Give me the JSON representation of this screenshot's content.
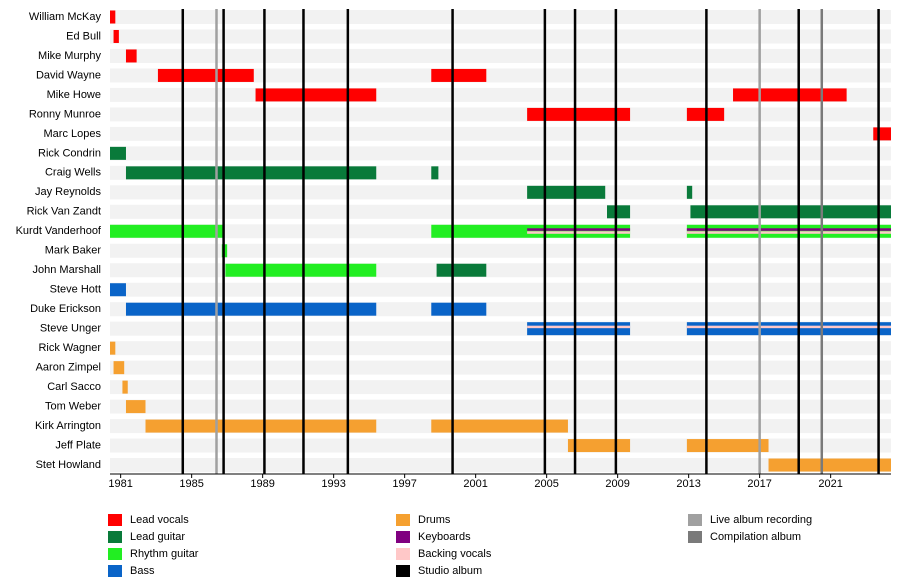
{
  "chart_data": {
    "type": "timeline",
    "members": [
      "William McKay",
      "Ed Bull",
      "Mike Murphy",
      "David Wayne",
      "Mike Howe",
      "Ronny Munroe",
      "Marc Lopes",
      "Rick Condrin",
      "Craig Wells",
      "Jay Reynolds",
      "Rick Van Zandt",
      "Kurdt Vanderhoof",
      "Mark Baker",
      "John Marshall",
      "Steve Hott",
      "Duke Erickson",
      "Steve Unger",
      "Rick Wagner",
      "Aaron Zimpel",
      "Carl Sacco",
      "Tom Weber",
      "Kirk Arrington",
      "Jeff Plate",
      "Stet Howland"
    ],
    "xlim": [
      1980.4,
      2024.4
    ],
    "xticks": [
      1981,
      1985,
      1989,
      1993,
      1997,
      2001,
      2005,
      2009,
      2013,
      2017,
      2021
    ],
    "series": [
      {
        "name": "Lead vocals",
        "color": "#ff0000",
        "bars": [
          {
            "member": "William McKay",
            "start": 1980.4,
            "end": 1980.7
          },
          {
            "member": "Ed Bull",
            "start": 1980.6,
            "end": 1980.9
          },
          {
            "member": "Mike Murphy",
            "start": 1981.3,
            "end": 1981.9
          },
          {
            "member": "David Wayne",
            "start": 1983.1,
            "end": 1988.5
          },
          {
            "member": "David Wayne",
            "start": 1998.5,
            "end": 2001.6
          },
          {
            "member": "Mike Howe",
            "start": 1988.6,
            "end": 1995.4
          },
          {
            "member": "Mike Howe",
            "start": 2015.5,
            "end": 2021.9
          },
          {
            "member": "Ronny Munroe",
            "start": 2003.9,
            "end": 2009.7
          },
          {
            "member": "Ronny Munroe",
            "start": 2012.9,
            "end": 2015.0
          },
          {
            "member": "Marc Lopes",
            "start": 2023.4,
            "end": 2024.4
          }
        ]
      },
      {
        "name": "Lead guitar",
        "color": "#097a3a",
        "bars": [
          {
            "member": "Rick Condrin",
            "start": 1980.4,
            "end": 1981.3
          },
          {
            "member": "Craig Wells",
            "start": 1981.3,
            "end": 1995.4
          },
          {
            "member": "Craig Wells",
            "start": 1998.5,
            "end": 1998.9
          },
          {
            "member": "Jay Reynolds",
            "start": 2003.9,
            "end": 2008.3
          },
          {
            "member": "Jay Reynolds",
            "start": 2012.9,
            "end": 2013.2
          },
          {
            "member": "Rick Van Zandt",
            "start": 2008.4,
            "end": 2009.7
          },
          {
            "member": "Rick Van Zandt",
            "start": 2013.1,
            "end": 2024.4
          },
          {
            "member": "John Marshall",
            "start": 1998.8,
            "end": 2001.6
          }
        ]
      },
      {
        "name": "Rhythm guitar",
        "color": "#22ee22",
        "bars": [
          {
            "member": "Kurdt Vanderhoof",
            "start": 1980.4,
            "end": 1986.8
          },
          {
            "member": "Kurdt Vanderhoof",
            "start": 1998.5,
            "end": 2009.7
          },
          {
            "member": "Kurdt Vanderhoof",
            "start": 2012.9,
            "end": 2024.4
          },
          {
            "member": "Mark Baker",
            "start": 1986.7,
            "end": 1987.0
          },
          {
            "member": "John Marshall",
            "start": 1986.9,
            "end": 1995.4
          }
        ]
      },
      {
        "name": "Bass",
        "color": "#0a64c8",
        "bars": [
          {
            "member": "Steve Hott",
            "start": 1980.4,
            "end": 1981.3
          },
          {
            "member": "Duke Erickson",
            "start": 1981.3,
            "end": 1995.4
          },
          {
            "member": "Duke Erickson",
            "start": 1998.5,
            "end": 2001.6
          },
          {
            "member": "Steve Unger",
            "start": 2003.9,
            "end": 2009.7
          },
          {
            "member": "Steve Unger",
            "start": 2012.9,
            "end": 2024.4
          }
        ]
      },
      {
        "name": "Drums",
        "color": "#f5a030",
        "bars": [
          {
            "member": "Rick Wagner",
            "start": 1980.4,
            "end": 1980.7
          },
          {
            "member": "Aaron Zimpel",
            "start": 1980.6,
            "end": 1981.2
          },
          {
            "member": "Carl Sacco",
            "start": 1981.1,
            "end": 1981.4
          },
          {
            "member": "Tom Weber",
            "start": 1981.3,
            "end": 1982.4
          },
          {
            "member": "Kirk Arrington",
            "start": 1982.4,
            "end": 1995.4
          },
          {
            "member": "Kirk Arrington",
            "start": 1998.5,
            "end": 2006.2
          },
          {
            "member": "Jeff Plate",
            "start": 2006.2,
            "end": 2009.7
          },
          {
            "member": "Jeff Plate",
            "start": 2012.9,
            "end": 2017.5
          },
          {
            "member": "Stet Howland",
            "start": 2017.5,
            "end": 2024.4
          }
        ]
      },
      {
        "name": "Keyboards",
        "color": "#800080",
        "bars": [
          {
            "member": "Kurdt Vanderhoof",
            "start": 2003.9,
            "end": 2009.7
          },
          {
            "member": "Kurdt Vanderhoof",
            "start": 2012.9,
            "end": 2024.4
          }
        ]
      },
      {
        "name": "Backing vocals",
        "color": "#ffc8c8",
        "bars": [
          {
            "member": "Kurdt Vanderhoof",
            "start": 2003.9,
            "end": 2009.7
          },
          {
            "member": "Kurdt Vanderhoof",
            "start": 2012.9,
            "end": 2024.4
          },
          {
            "member": "Steve Unger",
            "start": 2003.9,
            "end": 2009.7
          },
          {
            "member": "Steve Unger",
            "start": 2012.9,
            "end": 2024.4
          }
        ]
      }
    ],
    "events": [
      {
        "name": "Studio album",
        "color": "#000000",
        "x": [
          1984.5,
          1986.8,
          1989.1,
          1991.3,
          1993.8,
          1999.7,
          2004.9,
          2006.6,
          2008.9,
          2014.0,
          2019.2,
          2023.7
        ]
      },
      {
        "name": "Live album recording",
        "color": "#a0a0a0",
        "x": [
          1986.4,
          2017.0
        ]
      },
      {
        "name": "Compilation album",
        "color": "#7a7a7a",
        "x": [
          2020.5
        ]
      }
    ]
  }
}
